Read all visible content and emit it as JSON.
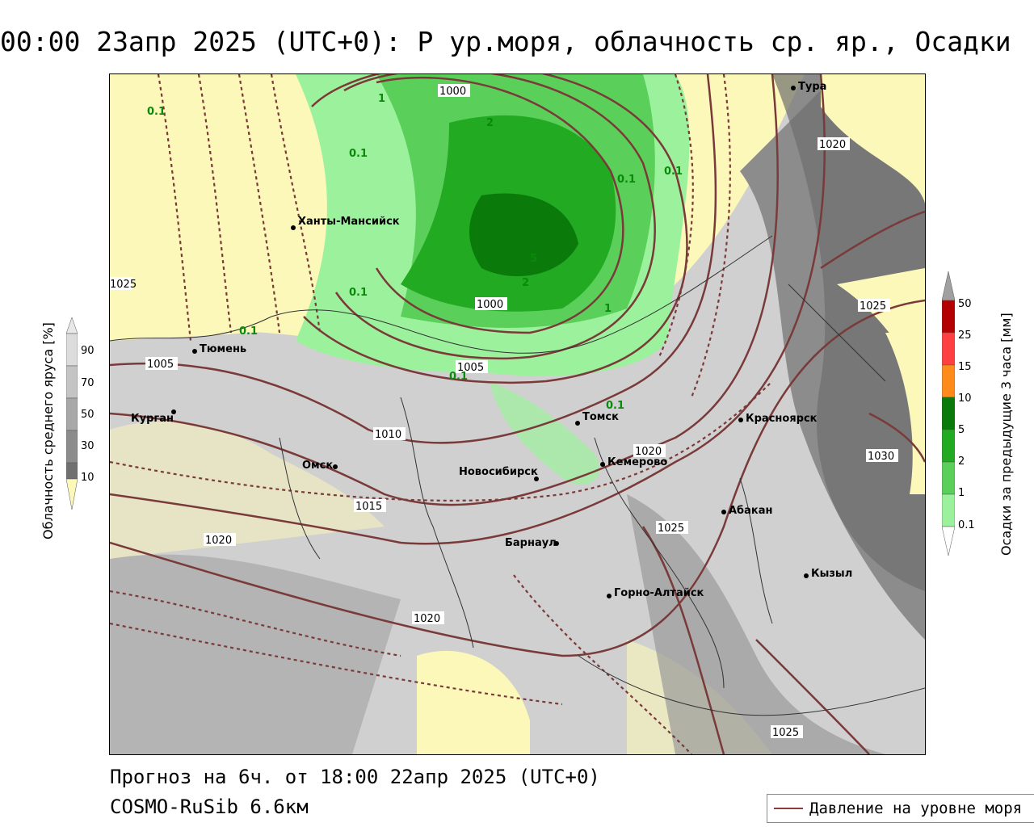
{
  "title": "00:00 23апр 2025 (UTC+0): P ур.моря, облачность ср. яр., Осадки",
  "footer": {
    "forecast": "Прогноз на 6ч. от 18:00 22апр 2025 (UTC+0)",
    "model": "COSMO-RuSib 6.6км"
  },
  "legend": {
    "pressure_line": "Давление на уровне моря"
  },
  "cloud_colorbar": {
    "label": "Облачность среднего яруса [%]",
    "ticks": [
      "90",
      "70",
      "50",
      "30",
      "10"
    ],
    "colors": [
      "#dcdcdc",
      "#c4c4c4",
      "#a8a8a8",
      "#8c8c8c",
      "#707070"
    ]
  },
  "precip_colorbar": {
    "label": "Осадки за предыдущие 3 часа [мм]",
    "ticks": [
      "50",
      "25",
      "15",
      "10",
      "5",
      "2",
      "1",
      "0.1"
    ],
    "colors": [
      "#a0a0a0",
      "#b30000",
      "#ff4040",
      "#ff8c1a",
      "#0a7a0a",
      "#22aa22",
      "#5ad05a",
      "#9cf29c"
    ]
  },
  "cities": [
    {
      "name": "Тура"
    },
    {
      "name": "Ханты-Мансийск"
    },
    {
      "name": "Тюмень"
    },
    {
      "name": "Курган"
    },
    {
      "name": "Омск"
    },
    {
      "name": "Новосибирск"
    },
    {
      "name": "Томск"
    },
    {
      "name": "Кемерово"
    },
    {
      "name": "Красноярск"
    },
    {
      "name": "Абакан"
    },
    {
      "name": "Барнаул"
    },
    {
      "name": "Горно-Алтайск"
    },
    {
      "name": "Кызыл"
    }
  ],
  "isobar_labels": [
    "1000",
    "1000",
    "1005",
    "1010",
    "1015",
    "1020",
    "1020",
    "1020",
    "1020",
    "1025",
    "1025",
    "1025",
    "1025",
    "1030",
    "1005"
  ],
  "precip_labels": [
    "0.1",
    "0.1",
    "0.1",
    "0.1",
    "0.1",
    "0.1",
    "0.1",
    "0.1",
    "1",
    "1",
    "2",
    "2",
    "5"
  ]
}
